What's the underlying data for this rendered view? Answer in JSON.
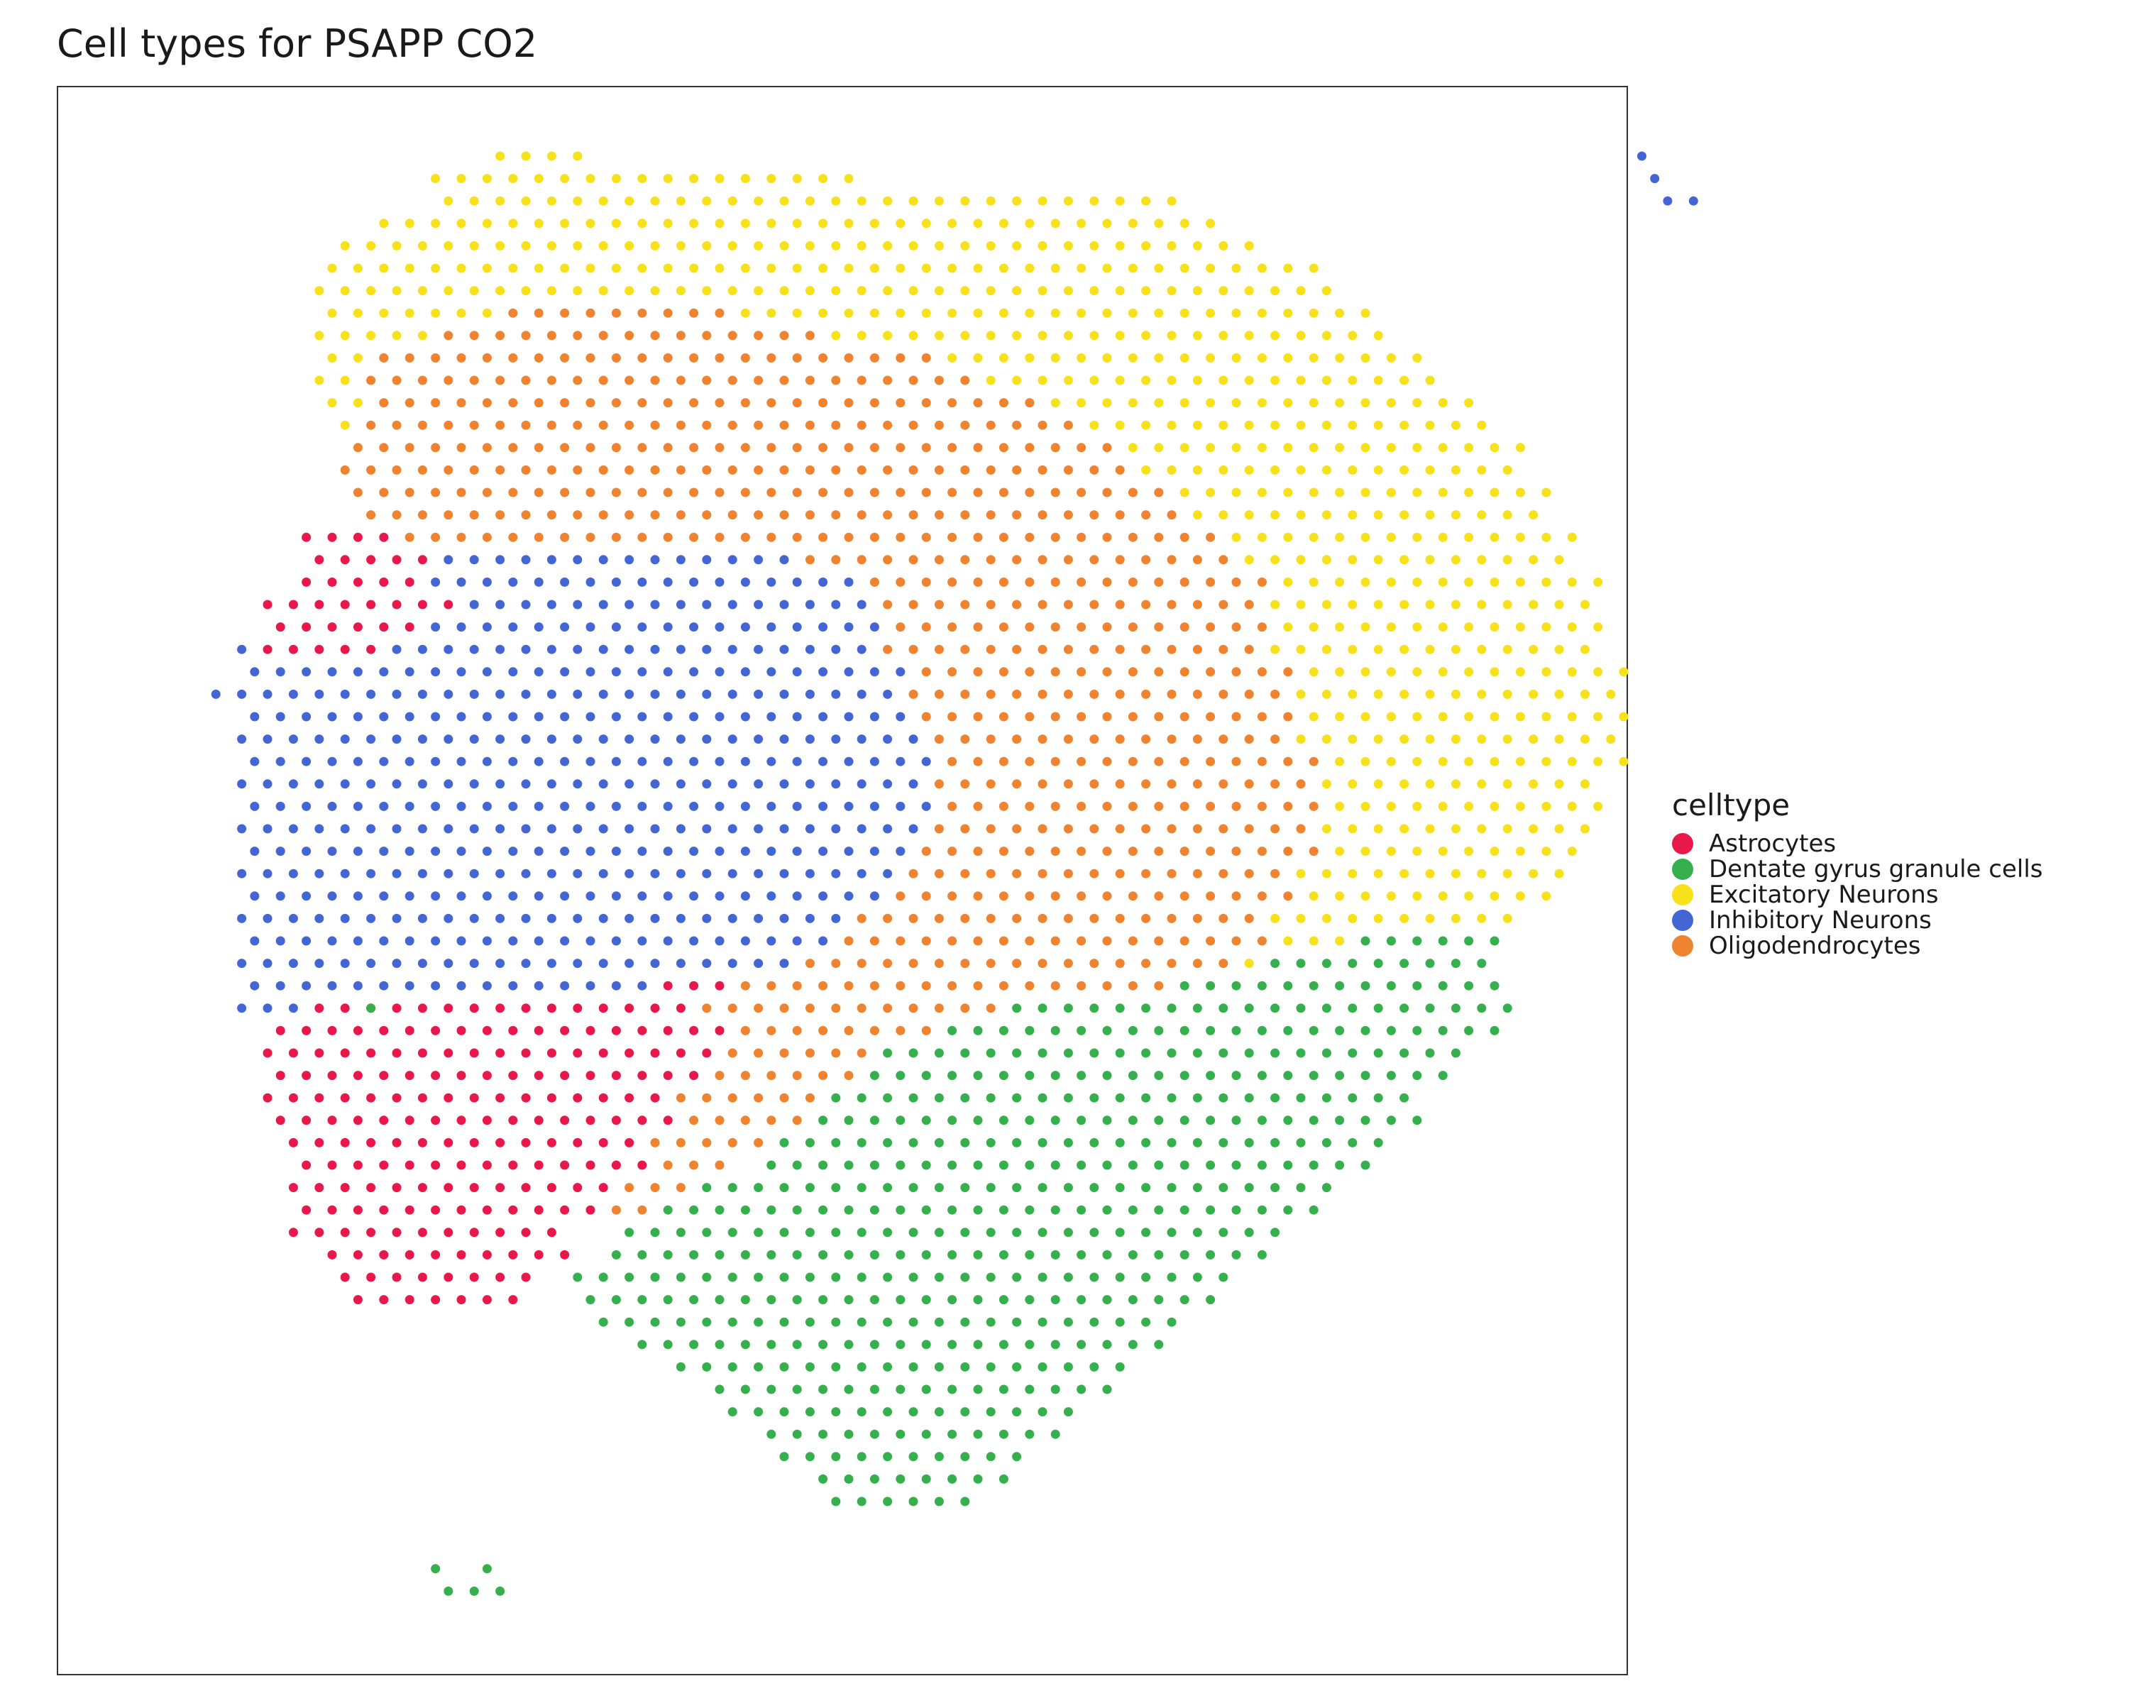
{
  "chart_data": {
    "type": "scatter",
    "title": "Cell types for PSAPP CO2",
    "xlabel": "",
    "ylabel": "",
    "xlim": [
      0,
      62
    ],
    "ylim": [
      0,
      68
    ],
    "grid": false,
    "legend_title": "celltype",
    "legend_position": "right",
    "colors": {
      "Astrocytes": "#e8194a",
      "Dentate gyrus granule cells": "#36b04d",
      "Excitatory Neurons": "#f7e11a",
      "Inhibitory Neurons": "#4466d4",
      "Oligodendrocytes": "#f0832f"
    },
    "series": [
      {
        "name": "Astrocytes"
      },
      {
        "name": "Dentate gyrus granule cells"
      },
      {
        "name": "Excitatory Neurons"
      },
      {
        "name": "Inhibitory Neurons"
      },
      {
        "name": "Oligodendrocytes"
      }
    ],
    "layout_note": "The plot is a roughly hexagonal grid of spots; each region is listed as row index (top to bottom) with first and last column index. Rows alternate offset (odd rows shifted half a column). Isolated spots are listed explicitly.",
    "regions": [
      {
        "series": "Excitatory Neurons",
        "rows": [
          [
            0,
            14,
            17
          ],
          [
            1,
            11,
            27
          ],
          [
            2,
            12,
            40
          ],
          [
            3,
            9,
            41
          ],
          [
            4,
            8,
            43
          ],
          [
            5,
            7,
            45
          ],
          [
            6,
            7,
            46
          ],
          [
            7,
            7,
            47
          ],
          [
            8,
            7,
            48
          ],
          [
            9,
            7,
            49
          ],
          [
            10,
            7,
            50
          ],
          [
            11,
            7,
            51
          ],
          [
            12,
            8,
            52
          ],
          [
            13,
            8,
            53
          ],
          [
            14,
            9,
            53
          ],
          [
            15,
            9,
            54
          ],
          [
            16,
            10,
            54
          ],
          [
            17,
            11,
            55
          ],
          [
            18,
            12,
            55
          ],
          [
            19,
            12,
            56
          ],
          [
            20,
            13,
            56
          ],
          [
            21,
            14,
            56
          ],
          [
            22,
            14,
            56
          ],
          [
            23,
            15,
            57
          ],
          [
            24,
            15,
            57
          ],
          [
            25,
            16,
            57
          ],
          [
            26,
            16,
            57
          ],
          [
            27,
            17,
            57
          ],
          [
            28,
            17,
            56
          ],
          [
            29,
            18,
            56
          ],
          [
            30,
            18,
            56
          ],
          [
            31,
            19,
            55
          ],
          [
            32,
            19,
            55
          ],
          [
            33,
            20,
            54
          ],
          [
            34,
            20,
            53
          ],
          [
            35,
            21,
            52
          ],
          [
            36,
            21,
            51
          ],
          [
            37,
            22,
            50
          ],
          [
            38,
            22,
            49
          ],
          [
            39,
            23,
            48
          ],
          [
            40,
            23,
            47
          ],
          [
            41,
            24,
            46
          ],
          [
            42,
            24,
            45
          ],
          [
            43,
            25,
            44
          ]
        ]
      },
      {
        "series": "Oligodendrocytes",
        "rows": [
          [
            7,
            14,
            22
          ],
          [
            8,
            12,
            26
          ],
          [
            9,
            9,
            30
          ],
          [
            10,
            9,
            32
          ],
          [
            11,
            9,
            34
          ],
          [
            12,
            9,
            36
          ],
          [
            13,
            8,
            37
          ],
          [
            14,
            8,
            38
          ],
          [
            15,
            8,
            39
          ],
          [
            16,
            9,
            40
          ],
          [
            17,
            9,
            41
          ],
          [
            18,
            10,
            42
          ],
          [
            19,
            10,
            43
          ],
          [
            20,
            11,
            43
          ],
          [
            21,
            12,
            43
          ],
          [
            22,
            13,
            43
          ],
          [
            23,
            14,
            44
          ],
          [
            24,
            14,
            44
          ],
          [
            25,
            15,
            44
          ],
          [
            26,
            15,
            44
          ],
          [
            27,
            16,
            45
          ],
          [
            28,
            16,
            45
          ],
          [
            29,
            17,
            45
          ],
          [
            30,
            17,
            45
          ],
          [
            31,
            18,
            45
          ],
          [
            32,
            18,
            44
          ],
          [
            33,
            19,
            44
          ],
          [
            34,
            20,
            43
          ],
          [
            35,
            20,
            43
          ],
          [
            36,
            21,
            42
          ],
          [
            37,
            21,
            41
          ],
          [
            38,
            22,
            40
          ],
          [
            39,
            22,
            38
          ],
          [
            40,
            22,
            36
          ],
          [
            41,
            21,
            33
          ],
          [
            42,
            20,
            30
          ],
          [
            43,
            19,
            27
          ],
          [
            44,
            18,
            24
          ],
          [
            45,
            17,
            22
          ],
          [
            46,
            17,
            21
          ],
          [
            47,
            16,
            20
          ]
        ]
      },
      {
        "series": "Inhibitory Neurons",
        "rows": [
          [
            18,
            12,
            25
          ],
          [
            19,
            11,
            27
          ],
          [
            20,
            10,
            28
          ],
          [
            21,
            6,
            28
          ],
          [
            22,
            4,
            28
          ],
          [
            23,
            4,
            29
          ],
          [
            24,
            3,
            29
          ],
          [
            25,
            4,
            29
          ],
          [
            26,
            4,
            30
          ],
          [
            27,
            4,
            30
          ],
          [
            28,
            4,
            30
          ],
          [
            29,
            4,
            30
          ],
          [
            30,
            4,
            30
          ],
          [
            31,
            4,
            29
          ],
          [
            32,
            4,
            29
          ],
          [
            33,
            4,
            28
          ],
          [
            34,
            4,
            27
          ],
          [
            35,
            4,
            26
          ],
          [
            36,
            4,
            25
          ],
          [
            37,
            4,
            22
          ],
          [
            38,
            4,
            20
          ]
        ]
      },
      {
        "series": "Astrocytes",
        "rows": [
          [
            17,
            6,
            9
          ],
          [
            18,
            7,
            11
          ],
          [
            19,
            6,
            10
          ],
          [
            20,
            5,
            12
          ],
          [
            21,
            5,
            10
          ],
          [
            22,
            5,
            9
          ],
          [
            37,
            20,
            22
          ],
          [
            38,
            7,
            21
          ],
          [
            39,
            5,
            22
          ],
          [
            40,
            5,
            22
          ],
          [
            41,
            5,
            21
          ],
          [
            42,
            5,
            20
          ],
          [
            43,
            5,
            20
          ],
          [
            44,
            6,
            19
          ],
          [
            45,
            6,
            19
          ],
          [
            46,
            6,
            18
          ],
          [
            47,
            6,
            17
          ],
          [
            48,
            6,
            16
          ],
          [
            49,
            7,
            16
          ],
          [
            50,
            8,
            15
          ],
          [
            51,
            8,
            14
          ]
        ]
      },
      {
        "series": "Dentate gyrus granule cells",
        "rows": [
          [
            35,
            47,
            52
          ],
          [
            36,
            44,
            52
          ],
          [
            37,
            40,
            52
          ],
          [
            38,
            34,
            53
          ],
          [
            39,
            31,
            52
          ],
          [
            40,
            29,
            51
          ],
          [
            41,
            28,
            50
          ],
          [
            42,
            27,
            49
          ],
          [
            43,
            26,
            49
          ],
          [
            44,
            25,
            48
          ],
          [
            45,
            24,
            47
          ],
          [
            46,
            22,
            46
          ],
          [
            47,
            20,
            45
          ],
          [
            48,
            19,
            44
          ],
          [
            49,
            18,
            43
          ],
          [
            50,
            17,
            42
          ],
          [
            51,
            17,
            41
          ],
          [
            52,
            18,
            40
          ],
          [
            53,
            19,
            39
          ],
          [
            54,
            21,
            38
          ],
          [
            55,
            22,
            37
          ],
          [
            56,
            23,
            36
          ],
          [
            57,
            24,
            35
          ],
          [
            58,
            25,
            34
          ],
          [
            59,
            26,
            33
          ],
          [
            60,
            27,
            32
          ]
        ]
      }
    ],
    "points": [
      {
        "series": "Inhibitory Neurons",
        "x": 58.2,
        "y": 0
      },
      {
        "series": "Inhibitory Neurons",
        "x": 58.7,
        "y": 1
      },
      {
        "series": "Inhibitory Neurons",
        "x": 59.2,
        "y": 2
      },
      {
        "series": "Inhibitory Neurons",
        "x": 60.2,
        "y": 2
      },
      {
        "series": "Dentate gyrus granule cells",
        "x": 9,
        "y": 38
      },
      {
        "series": "Dentate gyrus granule cells",
        "x": 11.5,
        "y": 63
      },
      {
        "series": "Dentate gyrus granule cells",
        "x": 13.5,
        "y": 63
      },
      {
        "series": "Dentate gyrus granule cells",
        "x": 12,
        "y": 64
      },
      {
        "series": "Dentate gyrus granule cells",
        "x": 13,
        "y": 64
      },
      {
        "series": "Dentate gyrus granule cells",
        "x": 14,
        "y": 64
      }
    ]
  }
}
